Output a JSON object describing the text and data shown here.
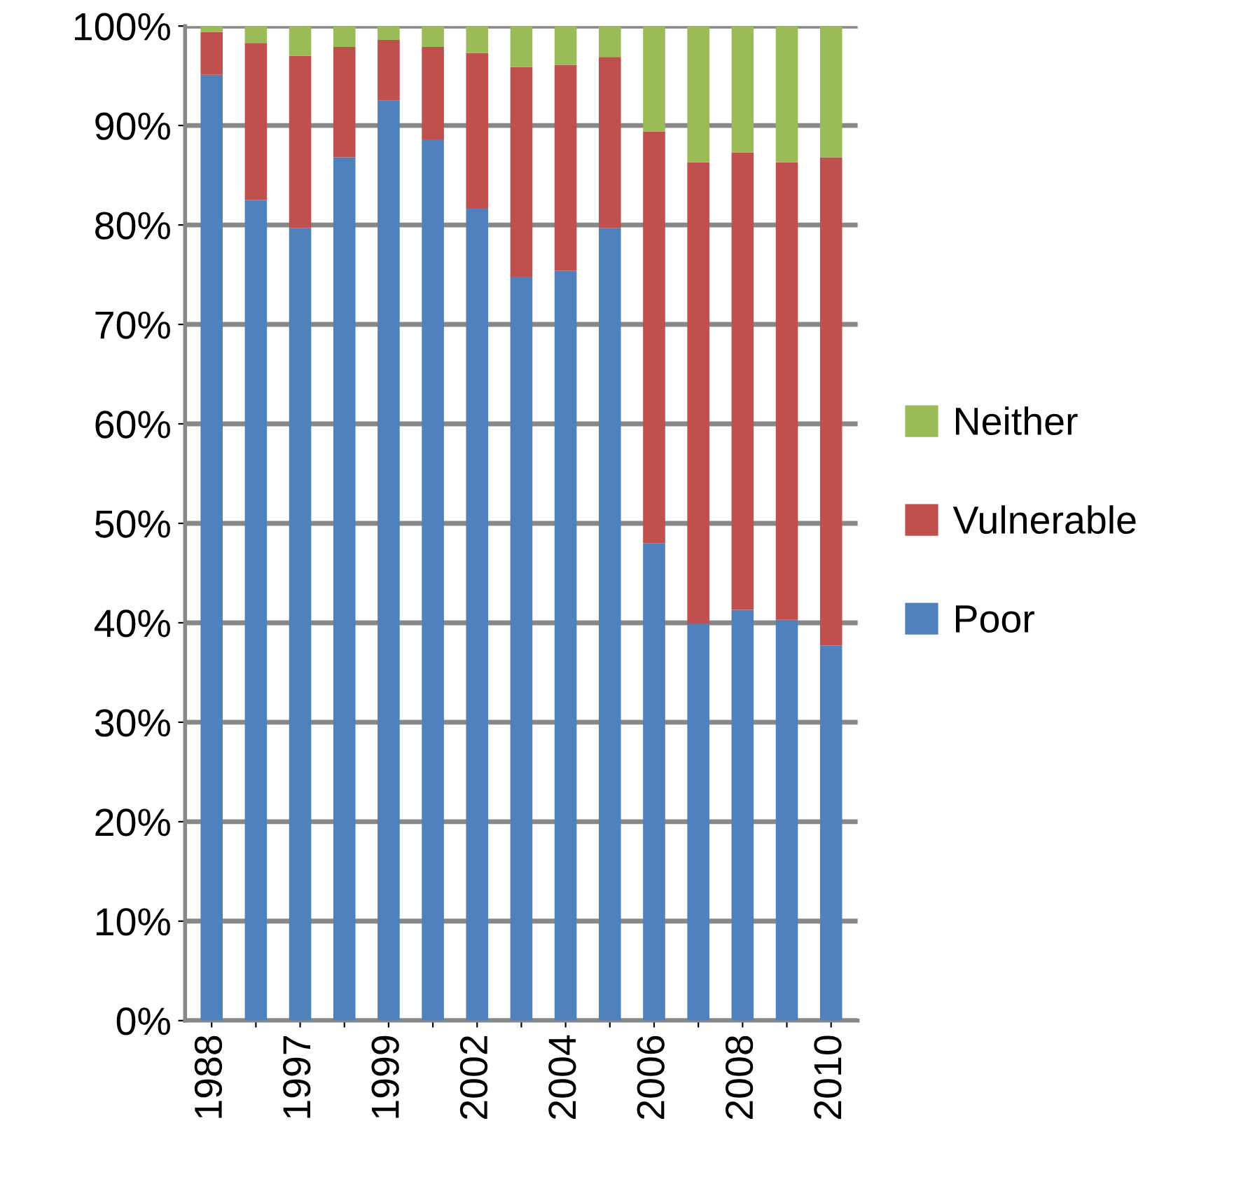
{
  "chart_data": {
    "type": "bar",
    "stacked": true,
    "categories": [
      "1988",
      null,
      "1997",
      null,
      "1999",
      null,
      "2002",
      null,
      "2004",
      null,
      "2006",
      null,
      "2008",
      null,
      "2010"
    ],
    "series": [
      {
        "name": "Poor",
        "color": "#4f81bd",
        "values": [
          95.1,
          82.5,
          79.7,
          86.8,
          92.5,
          88.6,
          81.7,
          74.8,
          75.4,
          79.7,
          48.0,
          39.9,
          41.3,
          40.3,
          37.7
        ]
      },
      {
        "name": "Vulnerable",
        "color": "#c0504d",
        "values": [
          4.3,
          15.8,
          17.3,
          11.1,
          6.1,
          9.3,
          15.6,
          21.1,
          20.7,
          17.2,
          41.4,
          46.4,
          46.0,
          46.0,
          49.1
        ]
      },
      {
        "name": "Neither",
        "color": "#9bbb59",
        "values": [
          0.6,
          1.7,
          3.0,
          2.1,
          1.4,
          2.1,
          2.7,
          4.1,
          3.9,
          3.1,
          10.6,
          13.7,
          12.7,
          13.7,
          13.2
        ]
      }
    ],
    "ylim": [
      0,
      100
    ],
    "yticks": [
      {
        "value": 0,
        "label": "0%"
      },
      {
        "value": 10,
        "label": "10%"
      },
      {
        "value": 20,
        "label": "20%"
      },
      {
        "value": 30,
        "label": "30%"
      },
      {
        "value": 40,
        "label": "40%"
      },
      {
        "value": 50,
        "label": "50%"
      },
      {
        "value": 60,
        "label": "60%"
      },
      {
        "value": 70,
        "label": "70%"
      },
      {
        "value": 80,
        "label": "80%"
      },
      {
        "value": 90,
        "label": "90%"
      },
      {
        "value": 100,
        "label": "100%"
      }
    ],
    "grid": "y",
    "legend": "right"
  }
}
